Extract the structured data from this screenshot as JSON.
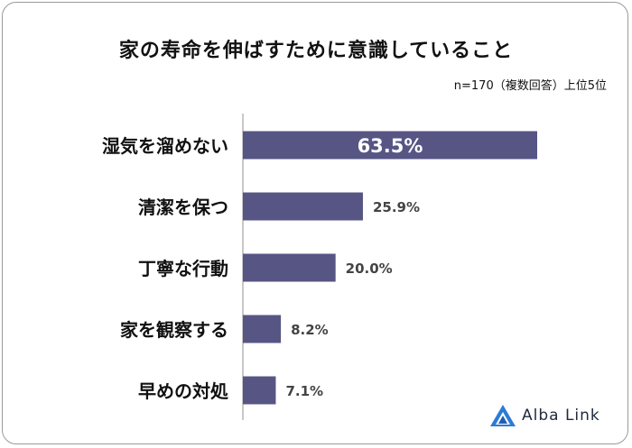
{
  "title": "家の寿命を伸ばすために意識していること",
  "subtitle": "n=170（複数回答）上位5位",
  "brand": {
    "name": "Alba Link",
    "accent": "#2b7bd6"
  },
  "colors": {
    "bar": "#565584",
    "axis": "#c8c8c8",
    "label_dark": "#444444",
    "label_light": "#ffffff"
  },
  "chart_data": {
    "type": "bar",
    "orientation": "horizontal",
    "categories": [
      "湿気を溜めない",
      "清潔を保つ",
      "丁寧な行動",
      "家を観察する",
      "早めの対処"
    ],
    "values": [
      63.5,
      25.9,
      20.0,
      8.2,
      7.1
    ],
    "value_labels": [
      "63.5%",
      "25.9%",
      "20.0%",
      "8.2%",
      "7.1%"
    ],
    "xlim": [
      0,
      100
    ],
    "grid": false,
    "legend": "none"
  }
}
